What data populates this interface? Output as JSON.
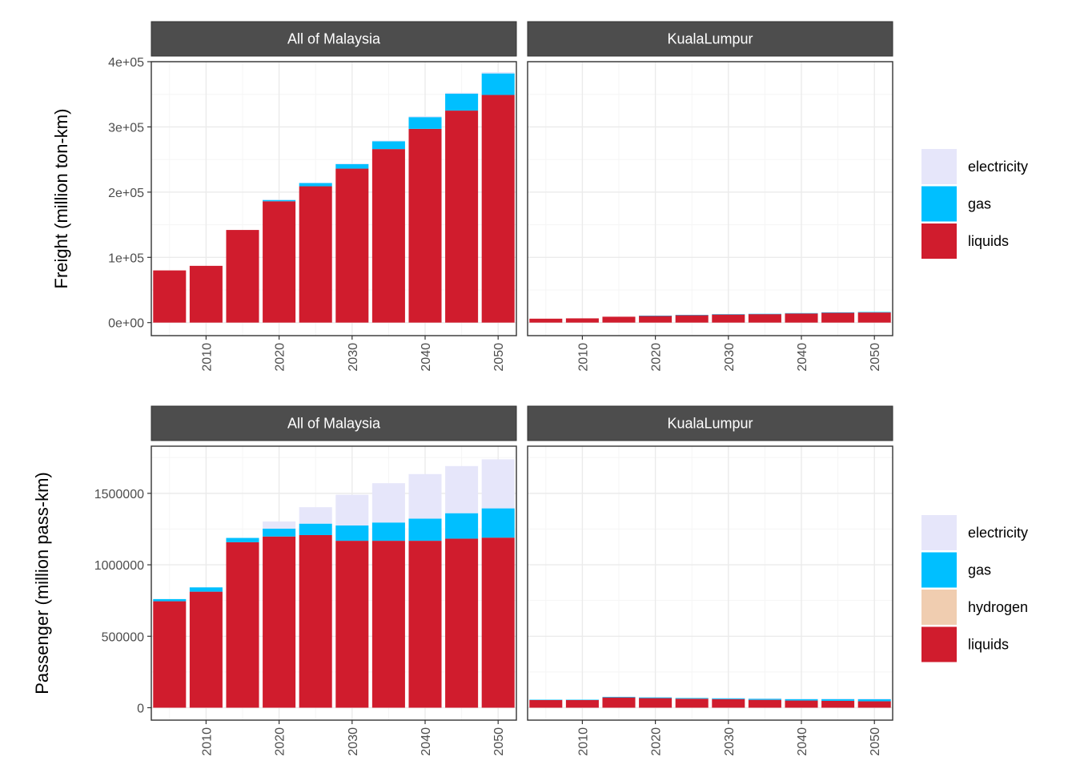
{
  "chart_data": [
    {
      "type": "bar",
      "stacked": true,
      "ylabel": "Freight (million ton-km)",
      "ylim": [
        -20000,
        400000
      ],
      "yticks": [
        0,
        100000,
        200000,
        300000,
        400000
      ],
      "ytick_labels": [
        "0e+00",
        "1e+05",
        "2e+05",
        "3e+05",
        "4e+05"
      ],
      "xlim": [
        2002.5,
        2052.5
      ],
      "xticks": [
        2010,
        2020,
        2030,
        2040,
        2050
      ],
      "xtick_labels": [
        "2010",
        "2020",
        "2030",
        "2040",
        "2050"
      ],
      "x": [
        2005,
        2010,
        2015,
        2020,
        2025,
        2030,
        2035,
        2040,
        2045,
        2050
      ],
      "grid": true,
      "legend": "right",
      "legend_title": "",
      "panels": [
        {
          "strip": "All of Malaysia",
          "series": [
            {
              "name": "liquids",
              "values": [
                80000,
                87000,
                142000,
                186000,
                209000,
                236000,
                266000,
                297000,
                325000,
                349000
              ]
            },
            {
              "name": "gas",
              "values": [
                0,
                0,
                0,
                2000,
                5000,
                7000,
                12000,
                18000,
                26000,
                33000
              ]
            },
            {
              "name": "electricity",
              "values": [
                0,
                0,
                0,
                500,
                500,
                1000,
                1000,
                1500,
                1500,
                2000
              ]
            }
          ]
        },
        {
          "strip": "KualaLumpur",
          "series": [
            {
              "name": "liquids",
              "values": [
                6000,
                6500,
                9000,
                10500,
                11500,
                12500,
                13000,
                14000,
                15000,
                15500
              ]
            },
            {
              "name": "gas",
              "values": [
                0,
                0,
                0,
                200,
                300,
                400,
                500,
                600,
                700,
                800
              ]
            },
            {
              "name": "electricity",
              "values": [
                0,
                0,
                0,
                0,
                0,
                0,
                0,
                0,
                0,
                0
              ]
            }
          ]
        }
      ]
    },
    {
      "type": "bar",
      "stacked": true,
      "ylabel": "Passenger (million pass-km)",
      "ylim": [
        -87000,
        1830000
      ],
      "yticks": [
        0,
        500000,
        1000000,
        1500000
      ],
      "ytick_labels": [
        "0",
        "500000",
        "1000000",
        "1500000"
      ],
      "xlim": [
        2002.5,
        2052.5
      ],
      "xticks": [
        2010,
        2020,
        2030,
        2040,
        2050
      ],
      "xtick_labels": [
        "2010",
        "2020",
        "2030",
        "2040",
        "2050"
      ],
      "x": [
        2005,
        2010,
        2015,
        2020,
        2025,
        2030,
        2035,
        2040,
        2045,
        2050
      ],
      "grid": true,
      "legend": "right",
      "legend_title": "",
      "panels": [
        {
          "strip": "All of Malaysia",
          "series": [
            {
              "name": "liquids",
              "values": [
                745000,
                812000,
                1158000,
                1198000,
                1208000,
                1168000,
                1168000,
                1168000,
                1183000,
                1190000
              ]
            },
            {
              "name": "gas",
              "values": [
                15000,
                30000,
                30000,
                55000,
                80000,
                107000,
                128000,
                155000,
                178000,
                205000
              ]
            },
            {
              "name": "hydrogen",
              "values": [
                0,
                0,
                0,
                0,
                0,
                0,
                0,
                0,
                0,
                0
              ]
            },
            {
              "name": "electricity",
              "values": [
                0,
                0,
                0,
                50000,
                115000,
                215000,
                275000,
                312000,
                330000,
                343000
              ]
            }
          ]
        },
        {
          "strip": "KualaLumpur",
          "series": [
            {
              "name": "liquids",
              "values": [
                55000,
                55000,
                72000,
                67000,
                63000,
                60000,
                55000,
                50000,
                48000,
                45000
              ]
            },
            {
              "name": "gas",
              "values": [
                1000,
                1000,
                4000,
                5000,
                5000,
                7000,
                8000,
                10000,
                12000,
                14000
              ]
            },
            {
              "name": "hydrogen",
              "values": [
                0,
                0,
                0,
                0,
                0,
                0,
                0,
                0,
                0,
                0
              ]
            },
            {
              "name": "electricity",
              "values": [
                0,
                0,
                0,
                0,
                0,
                1000,
                2000,
                3000,
                4000,
                5000
              ]
            }
          ]
        }
      ]
    }
  ],
  "colors": {
    "liquids": "#d01c2d",
    "gas": "#00bfff",
    "hydrogen": "#f0cdb0",
    "electricity": "#e6e6fa",
    "strip_bg": "#4d4d4d",
    "grid_major": "#ebebeb",
    "grid_minor": "#f5f5f5",
    "panel_border": "#333333"
  },
  "legends": [
    {
      "items": [
        "electricity",
        "gas",
        "liquids"
      ]
    },
    {
      "items": [
        "electricity",
        "gas",
        "hydrogen",
        "liquids"
      ]
    }
  ]
}
